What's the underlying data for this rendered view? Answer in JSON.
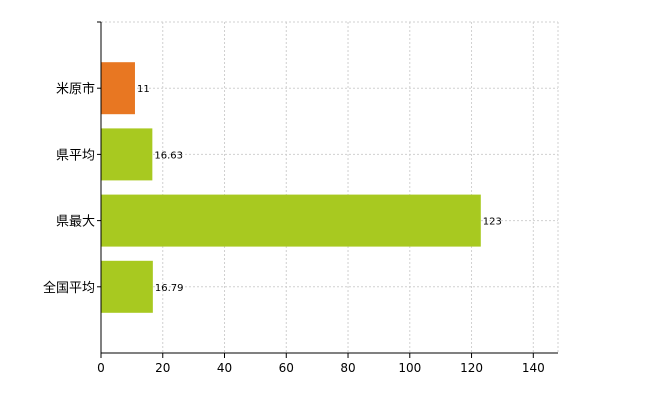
{
  "chart_data": {
    "type": "bar",
    "orientation": "horizontal",
    "categories": [
      "米原市",
      "県平均",
      "県最大",
      "全国平均"
    ],
    "values": [
      11,
      16.63,
      123,
      16.79
    ],
    "data_labels": [
      "11",
      "16.63",
      "123",
      "16.79"
    ],
    "colors": [
      "#e87722",
      "#a8c920",
      "#a8c920",
      "#a8c920"
    ],
    "xlim": [
      0,
      148
    ],
    "xticks": [
      0,
      20,
      40,
      60,
      80,
      100,
      120,
      140
    ],
    "grid": true,
    "title": "",
    "xlabel": "",
    "ylabel": ""
  }
}
